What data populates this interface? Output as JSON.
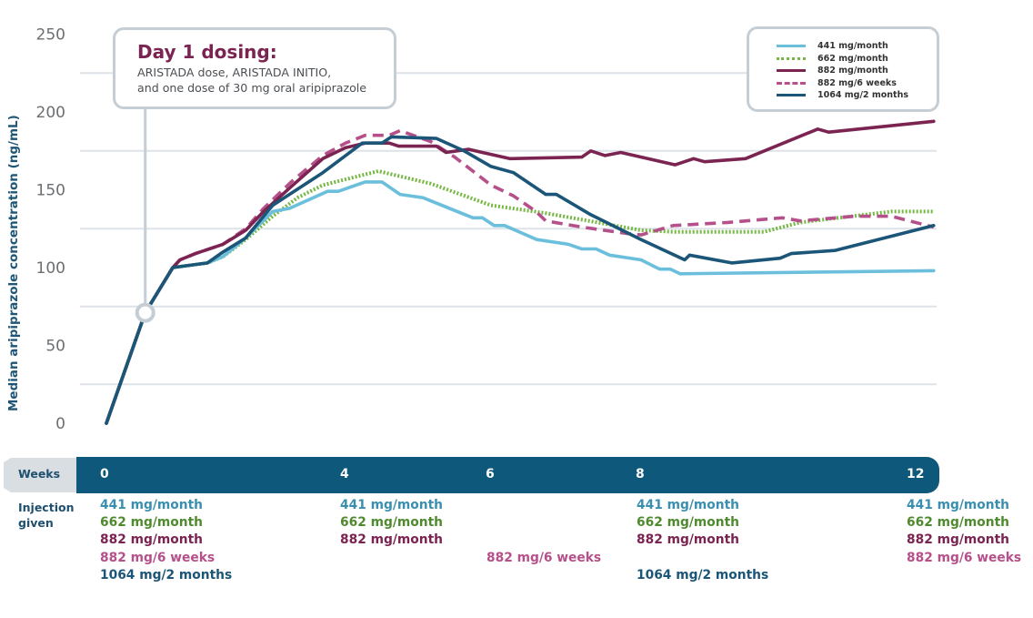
{
  "chart_data": {
    "type": "line",
    "title": "",
    "xlabel": "Weeks",
    "ylabel": "Median aripiprazole concentration (ng/mL)",
    "ylim": [
      0,
      250
    ],
    "yticks": [
      "0",
      "50",
      "100",
      "150",
      "200",
      "250"
    ],
    "ytick_values": [
      0,
      50,
      100,
      150,
      200,
      250
    ],
    "xticks": [
      "0",
      "4",
      "6",
      "8",
      "12"
    ],
    "xtick_values": [
      0,
      4,
      6,
      8,
      12
    ],
    "grid": true,
    "legend_position": "top-right",
    "annotation": {
      "title": "Day 1 dosing:",
      "lines": [
        "ARISTADA dose, ARISTADA INITIO,",
        "and one dose of 30 mg oral aripiprazole"
      ],
      "marker_x": 0.65,
      "marker_y": 71
    },
    "series": [
      {
        "name": "441 mg/month",
        "color": "#6bbfdc",
        "style": "solid",
        "points": [
          [
            0,
            0
          ],
          [
            0.65,
            71
          ],
          [
            1.11,
            100
          ],
          [
            1.69,
            103
          ],
          [
            1.95,
            107
          ],
          [
            2.33,
            119
          ],
          [
            2.78,
            136
          ],
          [
            3.06,
            138
          ],
          [
            3.7,
            149
          ],
          [
            3.88,
            149
          ],
          [
            4.27,
            155
          ],
          [
            4.5,
            155
          ],
          [
            4.75,
            147
          ],
          [
            5.06,
            145
          ],
          [
            5.75,
            132
          ],
          [
            5.88,
            132
          ],
          [
            6.04,
            127
          ],
          [
            6.18,
            127
          ],
          [
            6.61,
            118
          ],
          [
            7.03,
            115
          ],
          [
            7.21,
            112
          ],
          [
            7.4,
            112
          ],
          [
            7.58,
            108
          ],
          [
            8,
            105
          ],
          [
            8.27,
            99
          ],
          [
            8.43,
            99
          ],
          [
            8.57,
            96
          ],
          [
            12.29,
            98
          ]
        ]
      },
      {
        "name": "662 mg/month",
        "color": "#76b843",
        "style": "dotted",
        "points": [
          [
            0,
            0
          ],
          [
            0.65,
            71
          ],
          [
            1.11,
            100
          ],
          [
            1.69,
            103
          ],
          [
            1.95,
            107
          ],
          [
            2.33,
            118
          ],
          [
            2.78,
            133
          ],
          [
            3.2,
            145
          ],
          [
            3.62,
            153
          ],
          [
            4.45,
            162
          ],
          [
            5.17,
            154
          ],
          [
            6,
            140
          ],
          [
            6.73,
            135
          ],
          [
            8,
            124
          ],
          [
            8.47,
            123
          ],
          [
            9.8,
            123
          ],
          [
            10.33,
            129
          ],
          [
            11.67,
            136
          ],
          [
            12.29,
            136
          ]
        ]
      },
      {
        "name": "882 mg/month",
        "color": "#7b2351",
        "style": "solid",
        "points": [
          [
            0,
            0
          ],
          [
            0.65,
            71
          ],
          [
            1.11,
            100
          ],
          [
            1.23,
            105
          ],
          [
            1.49,
            109
          ],
          [
            1.95,
            115
          ],
          [
            2.33,
            124
          ],
          [
            2.63,
            136
          ],
          [
            3.09,
            152
          ],
          [
            3.62,
            170
          ],
          [
            4,
            177
          ],
          [
            4.27,
            180
          ],
          [
            4.6,
            180
          ],
          [
            4.73,
            178
          ],
          [
            5.25,
            178
          ],
          [
            5.38,
            174
          ],
          [
            5.69,
            176
          ],
          [
            5.88,
            174
          ],
          [
            6.25,
            170
          ],
          [
            7.21,
            171
          ],
          [
            7.33,
            175
          ],
          [
            7.52,
            172
          ],
          [
            7.73,
            174
          ],
          [
            8.5,
            166
          ],
          [
            8.77,
            170
          ],
          [
            8.93,
            168
          ],
          [
            9.53,
            170
          ],
          [
            10.59,
            189
          ],
          [
            10.75,
            187
          ],
          [
            12.29,
            194
          ]
        ]
      },
      {
        "name": "882 mg/6 weeks",
        "color": "#b5508a",
        "style": "dashed",
        "points": [
          [
            0,
            0
          ],
          [
            0.65,
            71
          ],
          [
            1.11,
            100
          ],
          [
            1.23,
            105
          ],
          [
            1.49,
            109
          ],
          [
            1.95,
            115
          ],
          [
            2.33,
            125
          ],
          [
            2.63,
            138
          ],
          [
            3.09,
            155
          ],
          [
            3.62,
            172
          ],
          [
            4,
            180
          ],
          [
            4.27,
            185
          ],
          [
            4.6,
            185
          ],
          [
            4.75,
            188
          ],
          [
            5.17,
            181
          ],
          [
            5.5,
            171
          ],
          [
            6,
            153
          ],
          [
            6.3,
            146
          ],
          [
            6.6,
            136
          ],
          [
            6.73,
            130
          ],
          [
            7.21,
            126
          ],
          [
            7.8,
            122
          ],
          [
            8,
            121
          ],
          [
            8.47,
            127
          ],
          [
            9.27,
            129
          ],
          [
            10.07,
            132
          ],
          [
            10.33,
            130
          ],
          [
            11.13,
            133
          ],
          [
            11.67,
            133
          ],
          [
            12.29,
            126
          ]
        ]
      },
      {
        "name": "1064 mg/2 months",
        "color": "#1b5577",
        "style": "solid",
        "points": [
          [
            0,
            0
          ],
          [
            0.65,
            71
          ],
          [
            1.11,
            100
          ],
          [
            1.69,
            103
          ],
          [
            1.95,
            110
          ],
          [
            2.33,
            119
          ],
          [
            2.78,
            140
          ],
          [
            3.62,
            161
          ],
          [
            4.23,
            180
          ],
          [
            4.5,
            180
          ],
          [
            4.63,
            184
          ],
          [
            5.25,
            183
          ],
          [
            5.63,
            175
          ],
          [
            6,
            165
          ],
          [
            6.3,
            161
          ],
          [
            6.73,
            147
          ],
          [
            6.87,
            147
          ],
          [
            7.33,
            134
          ],
          [
            8,
            118
          ],
          [
            8.64,
            105
          ],
          [
            8.71,
            108
          ],
          [
            9.33,
            103
          ],
          [
            10.04,
            106
          ],
          [
            10.2,
            109
          ],
          [
            10.84,
            111
          ],
          [
            12.29,
            127
          ]
        ]
      }
    ],
    "injections": [
      {
        "week_label": "0",
        "doses": [
          "441 mg/month",
          "662 mg/month",
          "882 mg/month",
          "882 mg/6 weeks",
          "1064 mg/2 months"
        ]
      },
      {
        "week_label": "4",
        "doses": [
          "441 mg/month",
          "662 mg/month",
          "882 mg/month"
        ]
      },
      {
        "week_label": "6",
        "doses": [
          "882 mg/6 weeks"
        ]
      },
      {
        "week_label": "8",
        "doses": [
          "441 mg/month",
          "662 mg/month",
          "882 mg/month",
          "1064 mg/2 months"
        ]
      },
      {
        "week_label": "12",
        "doses": [
          "441 mg/month",
          "662 mg/month",
          "882 mg/month",
          "882 mg/6 weeks"
        ]
      }
    ],
    "injection_label": "Injection given",
    "weeks_label": "Weeks"
  },
  "colors": {
    "weeks_bar": "#0e597b",
    "weeks_tab": "#d9dee3",
    "gridline": "#dde3e8",
    "callout_border": "#c5ced5",
    "callout_title": "#7b2351",
    "dose_441": "#3a8fb0",
    "dose_662": "#4f8a2f",
    "dose_882m": "#7b2351",
    "dose_882w": "#b5508a",
    "dose_1064": "#1b5577"
  }
}
